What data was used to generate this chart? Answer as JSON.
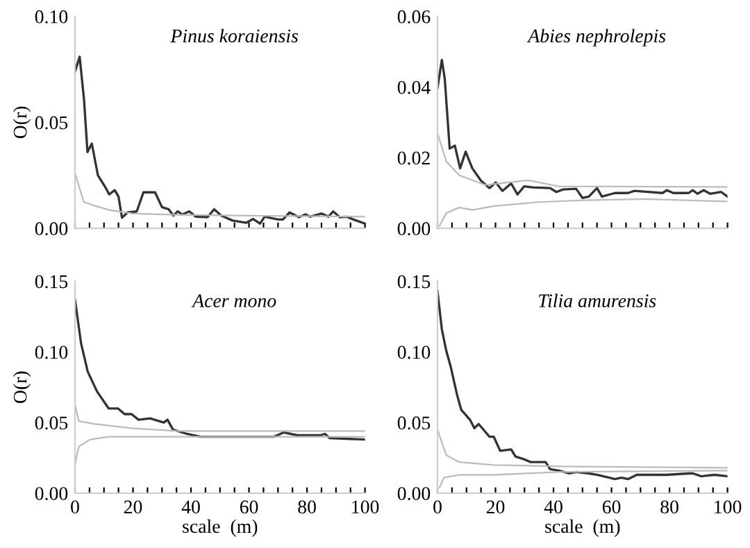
{
  "chart_data": [
    {
      "type": "line",
      "title": "Pinus koraiensis",
      "ylabel": "O(r)",
      "xlim": [
        0,
        100
      ],
      "ylim": [
        0,
        0.1
      ],
      "yticks": [
        {
          "value": 0,
          "label": "0.00"
        },
        {
          "value": 0.05,
          "label": "0.05"
        },
        {
          "value": 0.1,
          "label": "0.10"
        }
      ],
      "xticks": [
        {
          "value": 0,
          "label": null
        },
        {
          "value": 5,
          "label": null
        },
        {
          "value": 10,
          "label": null
        },
        {
          "value": 15,
          "label": null
        },
        {
          "value": 20,
          "label": null
        },
        {
          "value": 25,
          "label": null
        },
        {
          "value": 30,
          "label": null
        },
        {
          "value": 35,
          "label": null
        },
        {
          "value": 40,
          "label": null
        },
        {
          "value": 45,
          "label": null
        },
        {
          "value": 50,
          "label": null
        },
        {
          "value": 55,
          "label": null
        },
        {
          "value": 60,
          "label": null
        },
        {
          "value": 65,
          "label": null
        },
        {
          "value": 70,
          "label": null
        },
        {
          "value": 75,
          "label": null
        },
        {
          "value": 80,
          "label": null
        },
        {
          "value": 85,
          "label": null
        },
        {
          "value": 90,
          "label": null
        },
        {
          "value": 95,
          "label": null
        },
        {
          "value": 100,
          "label": null
        }
      ],
      "tick_labels": "y",
      "grid": false,
      "legend": false,
      "series": [
        {
          "color": "#333333",
          "x": [
            0,
            1.6,
            3.1,
            4.3,
            5.8,
            7.9,
            10.2,
            11.8,
            13.7,
            15,
            16.2,
            18.1,
            21.3,
            23.6,
            27.6,
            30,
            32.3,
            33.9,
            35.4,
            37,
            39.4,
            41.7,
            45.7,
            48,
            50.4,
            54.3,
            59,
            61.4,
            63.8,
            65.4,
            70,
            71.7,
            74,
            77.2,
            79.5,
            81.1,
            85,
            87.4,
            89,
            91.3,
            93.7,
            96,
            100
          ],
          "values": [
            0.074,
            0.081,
            0.061,
            0.036,
            0.04,
            0.025,
            0.02,
            0.016,
            0.018,
            0.015,
            0.005,
            0.0075,
            0.008,
            0.017,
            0.017,
            0.01,
            0.009,
            0.006,
            0.008,
            0.0065,
            0.008,
            0.0055,
            0.0053,
            0.009,
            0.006,
            0.0037,
            0.0026,
            0.0044,
            0.0022,
            0.0055,
            0.0042,
            0.0042,
            0.0075,
            0.0053,
            0.0066,
            0.0055,
            0.007,
            0.0055,
            0.008,
            0.0053,
            0.0055,
            0.0042,
            0.0022
          ]
        },
        {
          "color": "#bbbbbb",
          "x": [
            0,
            3,
            6,
            12,
            20,
            35,
            59,
            100
          ],
          "values": [
            0.026,
            0.0125,
            0.011,
            0.0086,
            0.007,
            0.0064,
            0.006,
            0.0055
          ]
        }
      ]
    },
    {
      "type": "line",
      "title": "Abies nephrolepis",
      "xlim": [
        0,
        100
      ],
      "ylim": [
        0,
        0.06
      ],
      "yticks": [
        {
          "value": 0,
          "label": "0.00"
        },
        {
          "value": 0.02,
          "label": "0.02"
        },
        {
          "value": 0.04,
          "label": "0.04"
        },
        {
          "value": 0.06,
          "label": "0.06"
        }
      ],
      "xticks": [
        {
          "value": 0,
          "label": null
        },
        {
          "value": 5,
          "label": null
        },
        {
          "value": 10,
          "label": null
        },
        {
          "value": 15,
          "label": null
        },
        {
          "value": 20,
          "label": null
        },
        {
          "value": 25,
          "label": null
        },
        {
          "value": 30,
          "label": null
        },
        {
          "value": 35,
          "label": null
        },
        {
          "value": 40,
          "label": null
        },
        {
          "value": 45,
          "label": null
        },
        {
          "value": 50,
          "label": null
        },
        {
          "value": 55,
          "label": null
        },
        {
          "value": 60,
          "label": null
        },
        {
          "value": 65,
          "label": null
        },
        {
          "value": 70,
          "label": null
        },
        {
          "value": 75,
          "label": null
        },
        {
          "value": 80,
          "label": null
        },
        {
          "value": 85,
          "label": null
        },
        {
          "value": 90,
          "label": null
        },
        {
          "value": 95,
          "label": null
        },
        {
          "value": 100,
          "label": null
        }
      ],
      "tick_labels": "y",
      "grid": false,
      "legend": false,
      "series": [
        {
          "color": "#333333",
          "x": [
            0,
            1.5,
            2.5,
            4.2,
            6,
            7.8,
            9.7,
            12,
            14.9,
            17.9,
            20.1,
            22.4,
            25.4,
            27.6,
            29.9,
            32.8,
            38.8,
            41,
            43.3,
            47.8,
            50,
            52.2,
            55,
            56.7,
            61.2,
            65.7,
            67.9,
            77.6,
            79.1,
            81.3,
            86.6,
            88,
            89.6,
            91.8,
            94,
            97.8,
            100
          ],
          "values": [
            0.0397,
            0.0477,
            0.0424,
            0.0226,
            0.0234,
            0.017,
            0.0217,
            0.017,
            0.0136,
            0.0114,
            0.013,
            0.0106,
            0.0127,
            0.0096,
            0.0119,
            0.0116,
            0.0114,
            0.0103,
            0.011,
            0.0112,
            0.0086,
            0.009,
            0.0114,
            0.009,
            0.01,
            0.01,
            0.0106,
            0.01,
            0.0108,
            0.01,
            0.01,
            0.0108,
            0.0098,
            0.0108,
            0.0098,
            0.0103,
            0.009
          ]
        },
        {
          "color": "#bbbbbb",
          "x": [
            0,
            3,
            7.5,
            16.4,
            31.3,
            41.8,
            100
          ],
          "values": [
            0.027,
            0.019,
            0.015,
            0.0123,
            0.0136,
            0.0119,
            0.0117
          ]
        },
        {
          "color": "#bbbbbb",
          "x": [
            0.7,
            3,
            7.5,
            12,
            19.4,
            34.3,
            49,
            71.6,
            100
          ],
          "values": [
            0.0007,
            0.0043,
            0.0059,
            0.0052,
            0.0063,
            0.0074,
            0.0079,
            0.0083,
            0.0076
          ]
        }
      ]
    },
    {
      "type": "line",
      "title": "Acer mono",
      "ylabel": "O(r)",
      "xlabel": "scale  (m)",
      "xlim": [
        0,
        100
      ],
      "ylim": [
        0,
        0.15
      ],
      "yticks": [
        {
          "value": 0,
          "label": "0.00"
        },
        {
          "value": 0.05,
          "label": "0.05"
        },
        {
          "value": 0.1,
          "label": "0.10"
        },
        {
          "value": 0.15,
          "label": "0.15"
        }
      ],
      "xticks": [
        {
          "value": 0,
          "label": "0"
        },
        {
          "value": 5,
          "label": null
        },
        {
          "value": 10,
          "label": null
        },
        {
          "value": 15,
          "label": null
        },
        {
          "value": 20,
          "label": "20"
        },
        {
          "value": 25,
          "label": null
        },
        {
          "value": 30,
          "label": null
        },
        {
          "value": 35,
          "label": null
        },
        {
          "value": 40,
          "label": "40"
        },
        {
          "value": 45,
          "label": null
        },
        {
          "value": 50,
          "label": null
        },
        {
          "value": 55,
          "label": null
        },
        {
          "value": 60,
          "label": "60"
        },
        {
          "value": 65,
          "label": null
        },
        {
          "value": 70,
          "label": null
        },
        {
          "value": 75,
          "label": null
        },
        {
          "value": 80,
          "label": "80"
        },
        {
          "value": 85,
          "label": null
        },
        {
          "value": 90,
          "label": null
        },
        {
          "value": 95,
          "label": null
        },
        {
          "value": 100,
          "label": "100"
        }
      ],
      "grid": false,
      "legend": false,
      "series": [
        {
          "color": "#333333",
          "x": [
            0,
            2.1,
            4.4,
            7.6,
            11.6,
            14.8,
            17.1,
            19.5,
            21.9,
            25.9,
            30.6,
            31.9,
            33.8,
            38.6,
            43.3,
            59.2,
            68.7,
            71.9,
            76.7,
            84.6,
            86.2,
            87.8,
            100
          ],
          "values": [
            0.137,
            0.106,
            0.086,
            0.072,
            0.06,
            0.06,
            0.056,
            0.056,
            0.052,
            0.053,
            0.05,
            0.052,
            0.045,
            0.042,
            0.04,
            0.04,
            0.04,
            0.043,
            0.041,
            0.041,
            0.042,
            0.039,
            0.038
          ]
        },
        {
          "color": "#bbbbbb",
          "x": [
            0,
            1.3,
            6.8,
            19.5,
            35.4,
            100
          ],
          "values": [
            0.063,
            0.051,
            0.049,
            0.046,
            0.044,
            0.044
          ]
        },
        {
          "color": "#bbbbbb",
          "x": [
            0,
            1.3,
            5.2,
            11.6,
            100
          ],
          "values": [
            0.02,
            0.033,
            0.038,
            0.04,
            0.04
          ]
        }
      ]
    },
    {
      "type": "line",
      "title": "Tilia amurensis",
      "xlabel": "scale  (m)",
      "xlim": [
        0,
        100
      ],
      "ylim": [
        0,
        0.15
      ],
      "yticks": [
        {
          "value": 0,
          "label": "0.00"
        },
        {
          "value": 0.05,
          "label": "0.05"
        },
        {
          "value": 0.1,
          "label": "0.10"
        },
        {
          "value": 0.15,
          "label": "0.15"
        }
      ],
      "xticks": [
        {
          "value": 0,
          "label": "0"
        },
        {
          "value": 5,
          "label": null
        },
        {
          "value": 10,
          "label": null
        },
        {
          "value": 15,
          "label": null
        },
        {
          "value": 20,
          "label": "20"
        },
        {
          "value": 25,
          "label": null
        },
        {
          "value": 30,
          "label": null
        },
        {
          "value": 35,
          "label": null
        },
        {
          "value": 40,
          "label": "40"
        },
        {
          "value": 45,
          "label": null
        },
        {
          "value": 50,
          "label": null
        },
        {
          "value": 55,
          "label": null
        },
        {
          "value": 60,
          "label": "60"
        },
        {
          "value": 65,
          "label": null
        },
        {
          "value": 70,
          "label": null
        },
        {
          "value": 75,
          "label": null
        },
        {
          "value": 80,
          "label": "80"
        },
        {
          "value": 85,
          "label": null
        },
        {
          "value": 90,
          "label": null
        },
        {
          "value": 95,
          "label": null
        },
        {
          "value": 100,
          "label": "100"
        }
      ],
      "grid": false,
      "legend": false,
      "series": [
        {
          "color": "#333333",
          "x": [
            0,
            1.5,
            3,
            4.5,
            6.7,
            8.2,
            11.2,
            12.7,
            14.2,
            17.9,
            19.4,
            21.6,
            25.4,
            26.9,
            29.9,
            32.1,
            37.3,
            38.8,
            41.8,
            45.5,
            47.8,
            52.2,
            55.2,
            61.2,
            63.4,
            65.7,
            68.7,
            74.6,
            79.1,
            86.6,
            88.1,
            91,
            95.5,
            100
          ],
          "values": [
            0.143,
            0.116,
            0.101,
            0.09,
            0.07,
            0.059,
            0.052,
            0.046,
            0.049,
            0.04,
            0.04,
            0.03,
            0.031,
            0.026,
            0.024,
            0.022,
            0.022,
            0.017,
            0.016,
            0.014,
            0.015,
            0.014,
            0.013,
            0.01,
            0.011,
            0.01,
            0.013,
            0.013,
            0.013,
            0.014,
            0.014,
            0.012,
            0.013,
            0.012
          ]
        },
        {
          "color": "#bbbbbb",
          "x": [
            0,
            3,
            7.5,
            19.4,
            41.8,
            100
          ],
          "values": [
            0.045,
            0.027,
            0.022,
            0.02,
            0.019,
            0.018
          ]
        },
        {
          "color": "#bbbbbb",
          "x": [
            0.7,
            2.2,
            7.5,
            19.4,
            41.8,
            100
          ],
          "values": [
            0.004,
            0.011,
            0.013,
            0.013,
            0.015,
            0.016
          ]
        }
      ]
    }
  ]
}
